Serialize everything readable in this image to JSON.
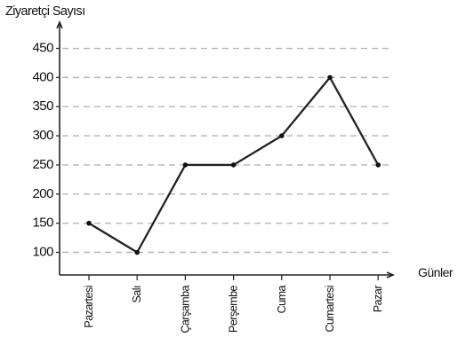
{
  "chart_data": {
    "type": "line",
    "ylabel": "Ziyaretçi Sayısı",
    "xlabel": "Günler",
    "categories": [
      "Pazartesi",
      "Salı",
      "Çarşamba",
      "Perşembe",
      "Cuma",
      "Cumartesi",
      "Pazar"
    ],
    "series": [
      {
        "values": [
          150,
          100,
          250,
          250,
          300,
          400,
          250
        ]
      }
    ],
    "ylim": [
      50,
      450
    ],
    "yticks": [
      100,
      150,
      200,
      250,
      300,
      350,
      400,
      450
    ],
    "grid": true,
    "line_color": "#222222",
    "grid_color": "#b5b5b5"
  }
}
